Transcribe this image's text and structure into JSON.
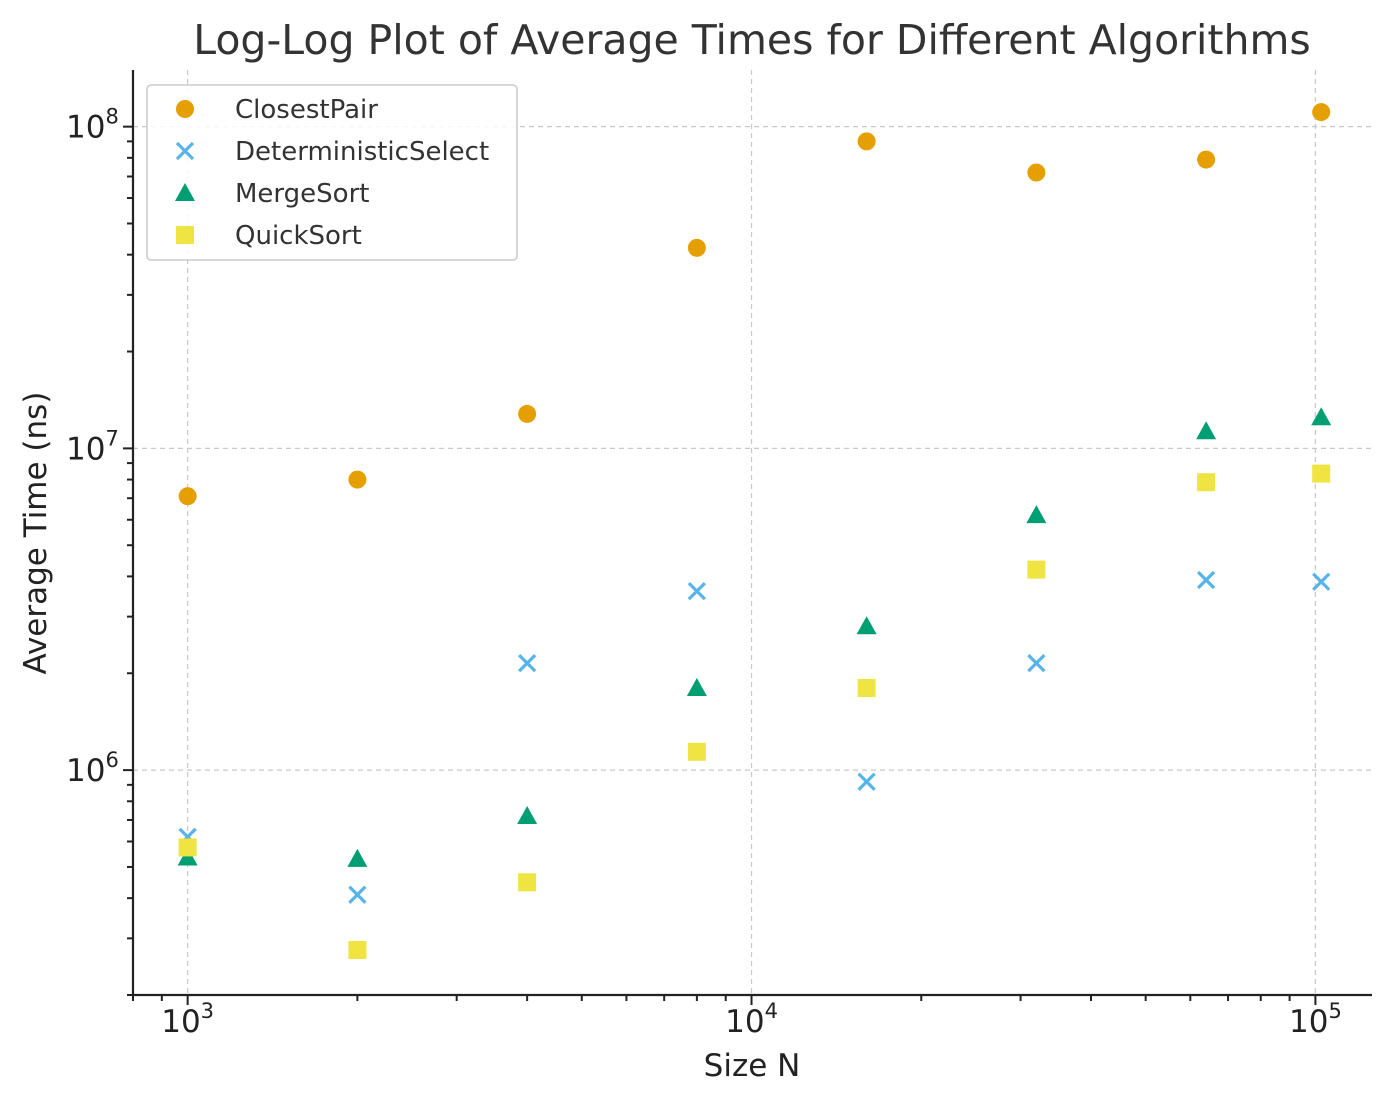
{
  "chart_data": {
    "type": "scatter",
    "title": "Log-Log Plot of Average Times for Different Algorithms",
    "xlabel": "Size N",
    "ylabel": "Average Time (ns)",
    "xscale": "log",
    "yscale": "log",
    "xlim": [
      800,
      126000
    ],
    "ylim": [
      200000,
      150000000
    ],
    "x_ticks": [
      {
        "value": 1000,
        "base": "10",
        "exp": "3"
      },
      {
        "value": 10000,
        "base": "10",
        "exp": "4"
      },
      {
        "value": 100000,
        "base": "10",
        "exp": "5"
      }
    ],
    "y_ticks": [
      {
        "value": 1000000,
        "base": "10",
        "exp": "6"
      },
      {
        "value": 10000000,
        "base": "10",
        "exp": "7"
      },
      {
        "value": 100000000,
        "base": "10",
        "exp": "8"
      }
    ],
    "grid": true,
    "legend_position": "top-left",
    "x": [
      1000,
      2000,
      4000,
      8000,
      16000,
      32000,
      64000,
      102400
    ],
    "series": [
      {
        "name": "ClosestPair",
        "marker": "circle",
        "color": "#E69F00",
        "values": [
          7100000,
          8000000,
          12800000,
          42000000,
          90000000,
          72000000,
          79000000,
          111000000
        ]
      },
      {
        "name": "DeterministicSelect",
        "marker": "x",
        "color": "#56B4E9",
        "values": [
          620000,
          410000,
          2150000,
          3600000,
          920000,
          2150000,
          3900000,
          3850000
        ]
      },
      {
        "name": "MergeSort",
        "marker": "triangle",
        "color": "#009E73",
        "values": [
          535000,
          530000,
          720000,
          1800000,
          2800000,
          6200000,
          11300000,
          12500000
        ]
      },
      {
        "name": "QuickSort",
        "marker": "square",
        "color": "#F0E442",
        "values": [
          575000,
          276000,
          448000,
          1140000,
          1800000,
          4200000,
          7850000,
          8350000
        ]
      }
    ]
  }
}
